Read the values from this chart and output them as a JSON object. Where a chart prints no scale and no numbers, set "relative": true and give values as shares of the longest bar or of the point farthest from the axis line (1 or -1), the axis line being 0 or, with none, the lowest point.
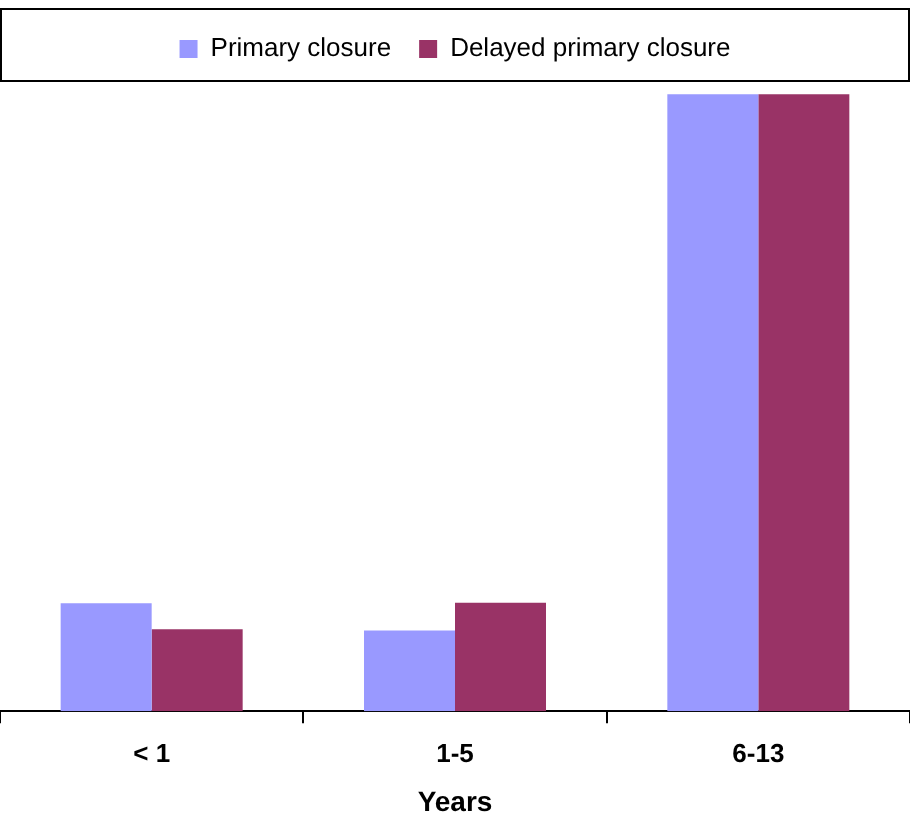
{
  "chart_data": {
    "type": "bar",
    "xlabel": "Years",
    "categories": [
      "< 1",
      "1-5",
      "6-13"
    ],
    "relative": true,
    "series": [
      {
        "name": "Primary closure",
        "color": "#9999ff",
        "values": [
          0.175,
          0.131,
          1
        ]
      },
      {
        "name": "Delayed primary closure",
        "color": "#993366",
        "values": [
          0.133,
          0.176,
          1
        ]
      }
    ],
    "legend": "top",
    "grid": false
  }
}
